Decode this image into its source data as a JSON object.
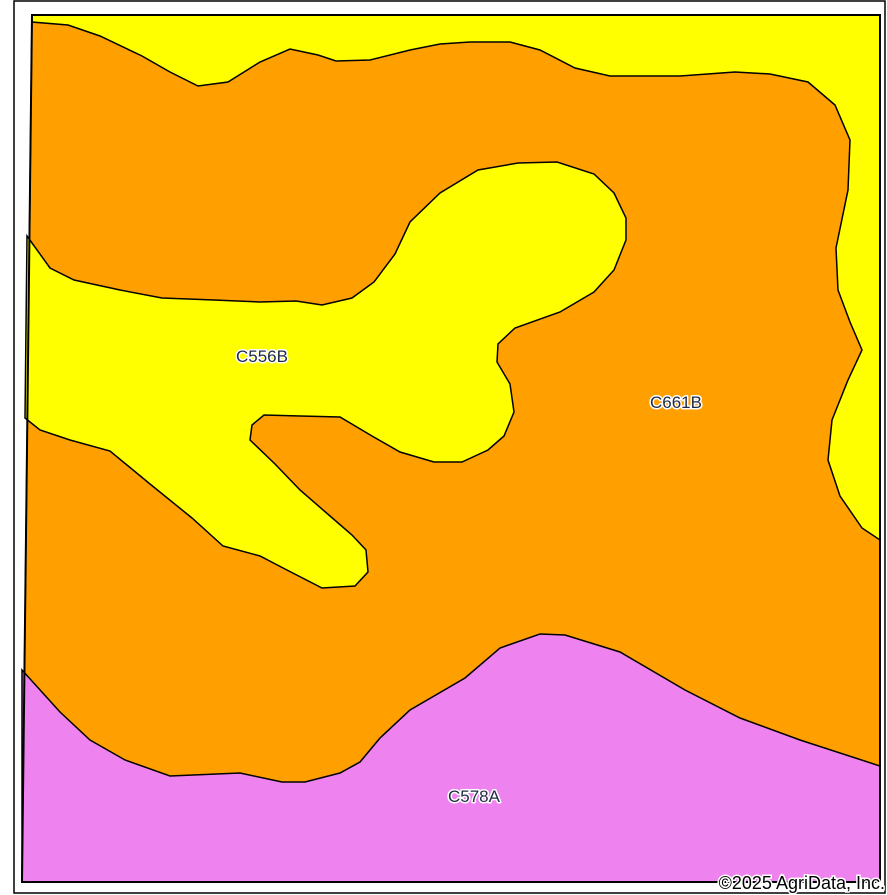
{
  "map": {
    "units": [
      {
        "symbol": "C661B",
        "color": "#ff9f00"
      },
      {
        "symbol": "C556B",
        "color": "#ffff00"
      },
      {
        "symbol": "C578A",
        "color": "#ee82ee"
      }
    ],
    "copyright": "©2025 AgriData, Inc.",
    "border_color": "#000000"
  }
}
